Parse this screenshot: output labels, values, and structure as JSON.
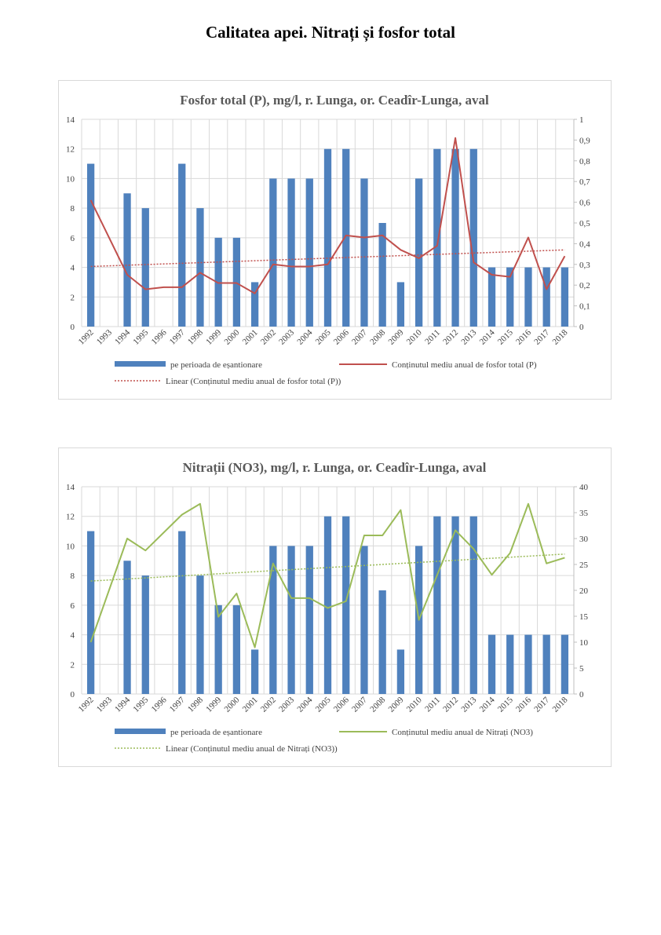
{
  "page": {
    "title": "Calitatea apei. Nitrați și fosfor total"
  },
  "chart_data": [
    {
      "type": "bar+line",
      "title": "Fosfor total (P), mg/l, r. Lunga, or. Ceadîr-Lunga, aval",
      "categories": [
        "1992",
        "1993",
        "1994",
        "1995",
        "1996",
        "1997",
        "1998",
        "1999",
        "2000",
        "2001",
        "2002",
        "2003",
        "2004",
        "2005",
        "2006",
        "2007",
        "2008",
        "2009",
        "2010",
        "2011",
        "2012",
        "2013",
        "2014",
        "2015",
        "2016",
        "2017",
        "2018"
      ],
      "left_axis": {
        "min": 0,
        "max": 14,
        "step": 2,
        "labels": [
          "0",
          "2",
          "4",
          "6",
          "8",
          "10",
          "12",
          "14"
        ]
      },
      "right_axis": {
        "min": 0,
        "max": 1,
        "step": 0.1,
        "labels": [
          "0",
          "0,1",
          "0,2",
          "0,3",
          "0,4",
          "0,5",
          "0,6",
          "0,7",
          "0,8",
          "0,9",
          "1"
        ]
      },
      "bar_series": {
        "name": "pe perioada de eșantionare",
        "color": "#4f81bd",
        "values": [
          11,
          null,
          9,
          8,
          null,
          11,
          8,
          6,
          6,
          3,
          10,
          10,
          10,
          12,
          12,
          10,
          7,
          3,
          10,
          12,
          12,
          12,
          4,
          4,
          4,
          4,
          4
        ]
      },
      "line_series": {
        "name": "Conținutul mediu anual de fosfor total (P)",
        "color": "#c0504d",
        "values": [
          0.61,
          null,
          0.25,
          0.18,
          0.19,
          0.19,
          0.26,
          0.21,
          0.21,
          0.16,
          0.3,
          0.29,
          0.29,
          0.3,
          0.44,
          0.43,
          0.44,
          0.37,
          0.33,
          0.39,
          0.91,
          0.31,
          0.25,
          0.24,
          0.43,
          0.18,
          0.34
        ]
      },
      "trend": {
        "name": "Linear (Conținutul mediu anual de fosfor total (P))",
        "color": "#c0504d",
        "start": 0.29,
        "end": 0.37
      },
      "grid": true,
      "legend_position": "bottom"
    },
    {
      "type": "bar+line",
      "title": "Nitrații (NO3), mg/l, r. Lunga, or. Ceadîr-Lunga, aval",
      "categories": [
        "1992",
        "1993",
        "1994",
        "1995",
        "1996",
        "1997",
        "1998",
        "1999",
        "2000",
        "2001",
        "2002",
        "2003",
        "2004",
        "2005",
        "2006",
        "2007",
        "2008",
        "2009",
        "2010",
        "2011",
        "2012",
        "2013",
        "2014",
        "2015",
        "2016",
        "2017",
        "2018"
      ],
      "left_axis": {
        "min": 0,
        "max": 14,
        "step": 2,
        "labels": [
          "0",
          "2",
          "4",
          "6",
          "8",
          "10",
          "12",
          "14"
        ]
      },
      "right_axis": {
        "min": 0,
        "max": 40,
        "step": 5,
        "labels": [
          "0",
          "5",
          "10",
          "15",
          "20",
          "25",
          "30",
          "35",
          "40"
        ]
      },
      "bar_series": {
        "name": "pe perioada de eșantionare",
        "color": "#4f81bd",
        "values": [
          11,
          null,
          9,
          8,
          null,
          11,
          8,
          6,
          6,
          3,
          10,
          10,
          10,
          12,
          12,
          10,
          7,
          3,
          10,
          12,
          12,
          12,
          4,
          4,
          4,
          4,
          4
        ]
      },
      "line_series": {
        "name": "Conținutul mediu anual de Nitrați (NO3)",
        "color": "#9bbb59",
        "values": [
          10,
          null,
          30,
          27.7,
          null,
          34.6,
          36.7,
          14.9,
          19.4,
          9,
          25.2,
          18.5,
          18.5,
          16.6,
          17.9,
          30.6,
          30.6,
          35.5,
          14.3,
          null,
          31.6,
          28,
          23,
          27.2,
          36.7,
          25.2,
          26.3
        ]
      },
      "trend": {
        "name": "Linear (Conținutul mediu anual de Nitrați (NO3))",
        "color": "#9bbb59",
        "start": 21.8,
        "end": 27
      },
      "grid": true,
      "legend_position": "bottom"
    }
  ]
}
